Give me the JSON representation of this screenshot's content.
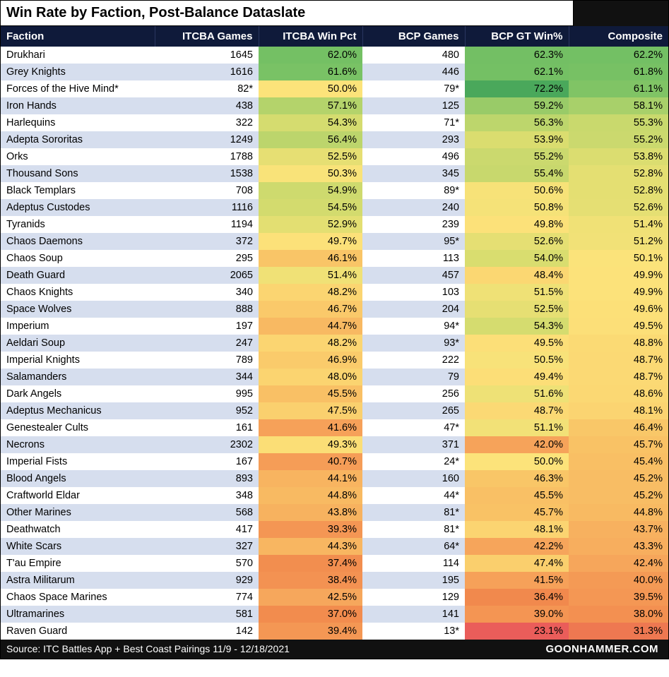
{
  "title": "Win Rate by Faction, Post-Balance Dataslate",
  "columns": [
    "Faction",
    "ITCBA Games",
    "ITCBA Win Pct",
    "BCP Games",
    "BCP GT Win%",
    "Composite"
  ],
  "footer_source": "Source: ITC Battles App + Best Coast Pairings 11/9 - 12/18/2021",
  "footer_site": "GOONHAMMER.COM",
  "heatmap": {
    "stops": [
      {
        "v": 23,
        "c": "#ea5d5a"
      },
      {
        "v": 36,
        "c": "#f1874c"
      },
      {
        "v": 42,
        "c": "#f6a35a"
      },
      {
        "v": 46,
        "c": "#f9c466"
      },
      {
        "v": 50,
        "c": "#fce37a"
      },
      {
        "v": 54,
        "c": "#d9dd6f"
      },
      {
        "v": 58,
        "c": "#a9d06a"
      },
      {
        "v": 62,
        "c": "#74c064"
      },
      {
        "v": 72,
        "c": "#4aa85b"
      }
    ]
  },
  "rows": [
    {
      "faction": "Drukhari",
      "itcba_games": "1645",
      "itcba_pct": 62.0,
      "bcp_games": "480",
      "bcp_pct": 62.3,
      "comp": 62.2
    },
    {
      "faction": "Grey Knights",
      "itcba_games": "1616",
      "itcba_pct": 61.6,
      "bcp_games": "446",
      "bcp_pct": 62.1,
      "comp": 61.8
    },
    {
      "faction": "Forces of the Hive Mind*",
      "itcba_games": "82*",
      "itcba_pct": 50.0,
      "bcp_games": "79*",
      "bcp_pct": 72.2,
      "comp": 61.1
    },
    {
      "faction": "Iron Hands",
      "itcba_games": "438",
      "itcba_pct": 57.1,
      "bcp_games": "125",
      "bcp_pct": 59.2,
      "comp": 58.1
    },
    {
      "faction": "Harlequins",
      "itcba_games": "322",
      "itcba_pct": 54.3,
      "bcp_games": "71*",
      "bcp_pct": 56.3,
      "comp": 55.3
    },
    {
      "faction": "Adepta Sororitas",
      "itcba_games": "1249",
      "itcba_pct": 56.4,
      "bcp_games": "293",
      "bcp_pct": 53.9,
      "comp": 55.2
    },
    {
      "faction": "Orks",
      "itcba_games": "1788",
      "itcba_pct": 52.5,
      "bcp_games": "496",
      "bcp_pct": 55.2,
      "comp": 53.8
    },
    {
      "faction": "Thousand Sons",
      "itcba_games": "1538",
      "itcba_pct": 50.3,
      "bcp_games": "345",
      "bcp_pct": 55.4,
      "comp": 52.8
    },
    {
      "faction": "Black Templars",
      "itcba_games": "708",
      "itcba_pct": 54.9,
      "bcp_games": "89*",
      "bcp_pct": 50.6,
      "comp": 52.8
    },
    {
      "faction": "Adeptus Custodes",
      "itcba_games": "1116",
      "itcba_pct": 54.5,
      "bcp_games": "240",
      "bcp_pct": 50.8,
      "comp": 52.6
    },
    {
      "faction": "Tyranids",
      "itcba_games": "1194",
      "itcba_pct": 52.9,
      "bcp_games": "239",
      "bcp_pct": 49.8,
      "comp": 51.4
    },
    {
      "faction": "Chaos Daemons",
      "itcba_games": "372",
      "itcba_pct": 49.7,
      "bcp_games": "95*",
      "bcp_pct": 52.6,
      "comp": 51.2
    },
    {
      "faction": "Chaos Soup",
      "itcba_games": "295",
      "itcba_pct": 46.1,
      "bcp_games": "113",
      "bcp_pct": 54.0,
      "comp": 50.1
    },
    {
      "faction": "Death Guard",
      "itcba_games": "2065",
      "itcba_pct": 51.4,
      "bcp_games": "457",
      "bcp_pct": 48.4,
      "comp": 49.9
    },
    {
      "faction": "Chaos Knights",
      "itcba_games": "340",
      "itcba_pct": 48.2,
      "bcp_games": "103",
      "bcp_pct": 51.5,
      "comp": 49.9
    },
    {
      "faction": "Space Wolves",
      "itcba_games": "888",
      "itcba_pct": 46.7,
      "bcp_games": "204",
      "bcp_pct": 52.5,
      "comp": 49.6
    },
    {
      "faction": "Imperium",
      "itcba_games": "197",
      "itcba_pct": 44.7,
      "bcp_games": "94*",
      "bcp_pct": 54.3,
      "comp": 49.5
    },
    {
      "faction": "Aeldari Soup",
      "itcba_games": "247",
      "itcba_pct": 48.2,
      "bcp_games": "93*",
      "bcp_pct": 49.5,
      "comp": 48.8
    },
    {
      "faction": "Imperial Knights",
      "itcba_games": "789",
      "itcba_pct": 46.9,
      "bcp_games": "222",
      "bcp_pct": 50.5,
      "comp": 48.7
    },
    {
      "faction": "Salamanders",
      "itcba_games": "344",
      "itcba_pct": 48.0,
      "bcp_games": "79",
      "bcp_pct": 49.4,
      "comp": 48.7
    },
    {
      "faction": "Dark Angels",
      "itcba_games": "995",
      "itcba_pct": 45.5,
      "bcp_games": "256",
      "bcp_pct": 51.6,
      "comp": 48.6
    },
    {
      "faction": "Adeptus Mechanicus",
      "itcba_games": "952",
      "itcba_pct": 47.5,
      "bcp_games": "265",
      "bcp_pct": 48.7,
      "comp": 48.1
    },
    {
      "faction": "Genestealer Cults",
      "itcba_games": "161",
      "itcba_pct": 41.6,
      "bcp_games": "47*",
      "bcp_pct": 51.1,
      "comp": 46.4
    },
    {
      "faction": "Necrons",
      "itcba_games": "2302",
      "itcba_pct": 49.3,
      "bcp_games": "371",
      "bcp_pct": 42.0,
      "comp": 45.7
    },
    {
      "faction": "Imperial Fists",
      "itcba_games": "167",
      "itcba_pct": 40.7,
      "bcp_games": "24*",
      "bcp_pct": 50.0,
      "comp": 45.4
    },
    {
      "faction": "Blood Angels",
      "itcba_games": "893",
      "itcba_pct": 44.1,
      "bcp_games": "160",
      "bcp_pct": 46.3,
      "comp": 45.2
    },
    {
      "faction": "Craftworld Eldar",
      "itcba_games": "348",
      "itcba_pct": 44.8,
      "bcp_games": "44*",
      "bcp_pct": 45.5,
      "comp": 45.2
    },
    {
      "faction": "Other Marines",
      "itcba_games": "568",
      "itcba_pct": 43.8,
      "bcp_games": "81*",
      "bcp_pct": 45.7,
      "comp": 44.8
    },
    {
      "faction": "Deathwatch",
      "itcba_games": "417",
      "itcba_pct": 39.3,
      "bcp_games": "81*",
      "bcp_pct": 48.1,
      "comp": 43.7
    },
    {
      "faction": "White Scars",
      "itcba_games": "327",
      "itcba_pct": 44.3,
      "bcp_games": "64*",
      "bcp_pct": 42.2,
      "comp": 43.3
    },
    {
      "faction": "T'au Empire",
      "itcba_games": "570",
      "itcba_pct": 37.4,
      "bcp_games": "114",
      "bcp_pct": 47.4,
      "comp": 42.4
    },
    {
      "faction": "Astra Militarum",
      "itcba_games": "929",
      "itcba_pct": 38.4,
      "bcp_games": "195",
      "bcp_pct": 41.5,
      "comp": 40.0
    },
    {
      "faction": "Chaos Space Marines",
      "itcba_games": "774",
      "itcba_pct": 42.5,
      "bcp_games": "129",
      "bcp_pct": 36.4,
      "comp": 39.5
    },
    {
      "faction": "Ultramarines",
      "itcba_games": "581",
      "itcba_pct": 37.0,
      "bcp_games": "141",
      "bcp_pct": 39.0,
      "comp": 38.0
    },
    {
      "faction": "Raven Guard",
      "itcba_games": "142",
      "itcba_pct": 39.4,
      "bcp_games": "13*",
      "bcp_pct": 23.1,
      "comp": 31.3
    }
  ]
}
